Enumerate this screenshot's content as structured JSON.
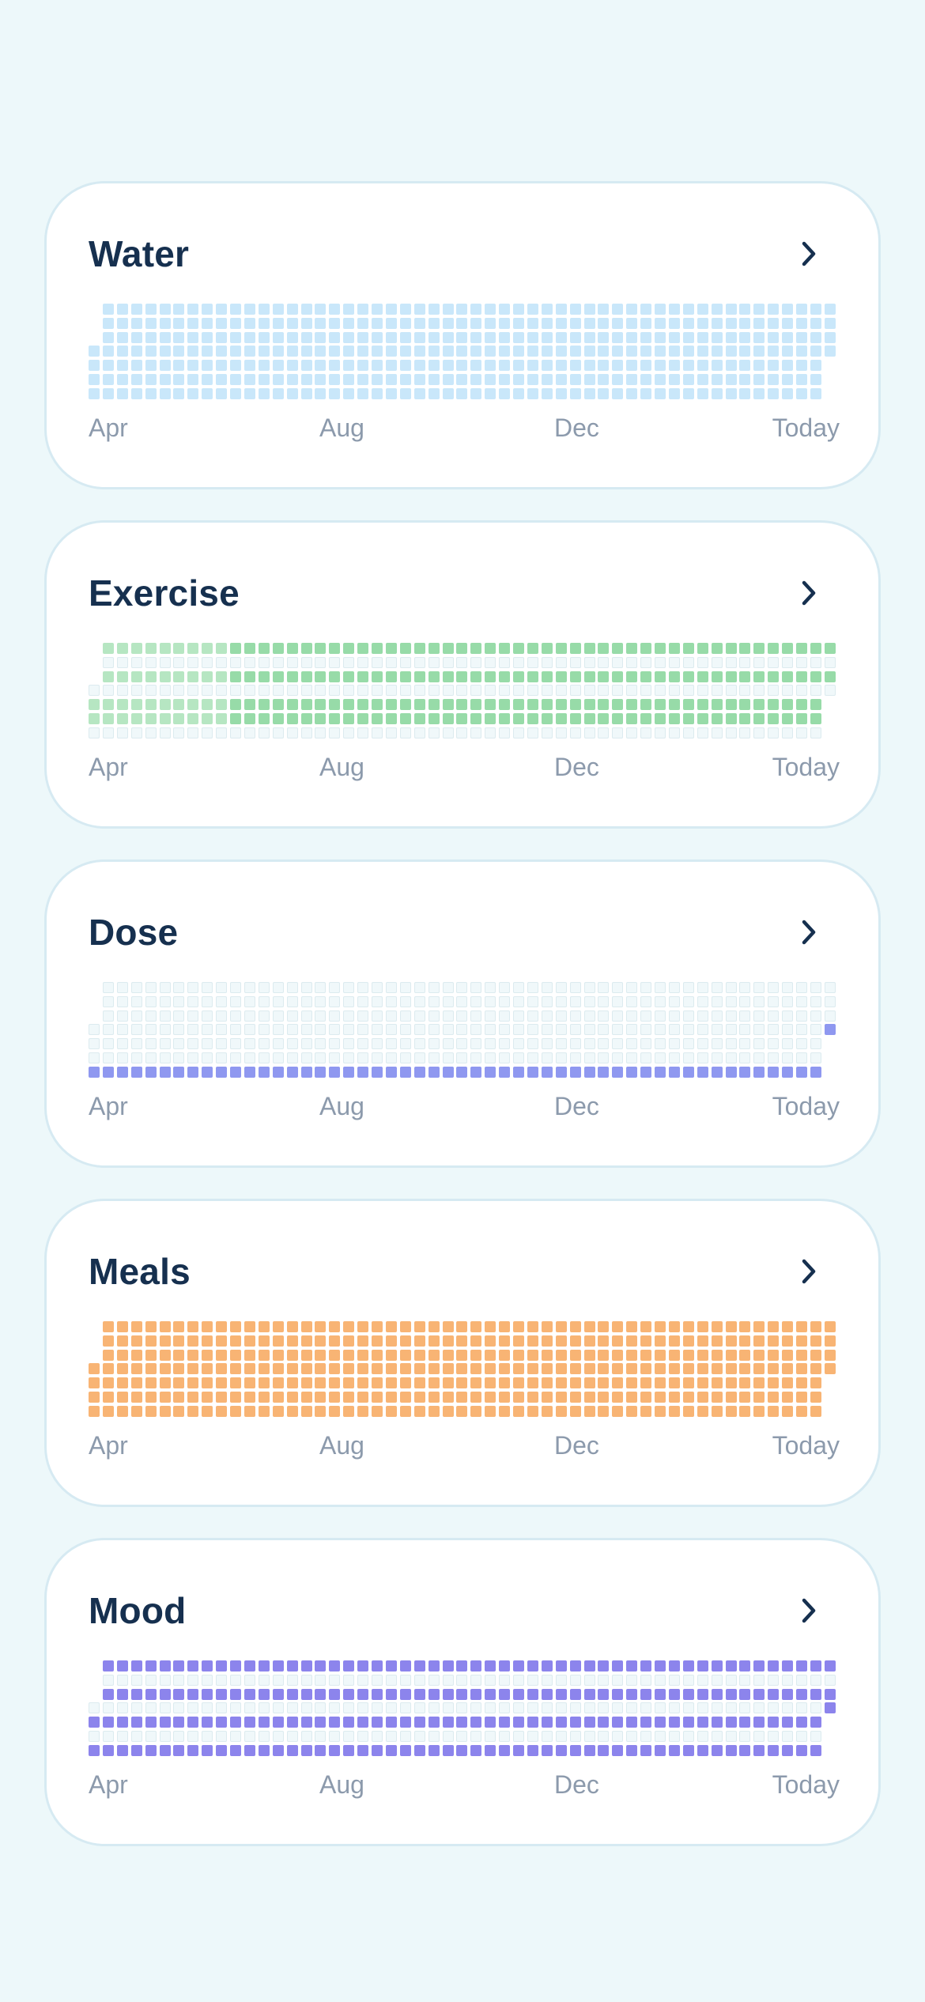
{
  "habits": [
    {
      "id": "water",
      "title": "Water",
      "colors": {
        "filled": "#C9E7FA",
        "filled_alt": "#C9E7FA",
        "empty": "#EEF6FA",
        "empty_border": "#DDEBF2"
      },
      "row_levels": [
        1,
        1,
        1,
        1,
        1,
        1,
        1
      ]
    },
    {
      "id": "exercise",
      "title": "Exercise",
      "colors": {
        "filled": "#97DBA8",
        "filled_alt": "#B6E6C2",
        "empty": "#F0F8FA",
        "empty_border": "#DCEBEF"
      },
      "row_levels": [
        1,
        0,
        1,
        0,
        1,
        1,
        0
      ]
    },
    {
      "id": "dose",
      "title": "Dose",
      "colors": {
        "filled": "#8F98F0",
        "filled_alt": "#8F98F0",
        "empty": "#F0F8FA",
        "empty_border": "#DCEBEF"
      },
      "row_levels": [
        0,
        0,
        0,
        0,
        0,
        0,
        1
      ],
      "extra_filled": [
        [
          87,
          3
        ]
      ]
    },
    {
      "id": "meals",
      "title": "Meals",
      "colors": {
        "filled": "#F8B474",
        "filled_alt": "#F8B474",
        "empty": "#F0F8FA",
        "empty_border": "#DCEBEF"
      },
      "row_levels": [
        1,
        1,
        1,
        1,
        1,
        1,
        1
      ]
    },
    {
      "id": "mood",
      "title": "Mood",
      "colors": {
        "filled": "#8C84EC",
        "filled_alt": "#8C84EC",
        "empty": "#F0F8FA",
        "empty_border": "#DCEBEF"
      },
      "row_levels": [
        1,
        0,
        1,
        0,
        1,
        0,
        1
      ],
      "extra_filled": [
        [
          87,
          3
        ]
      ]
    }
  ],
  "axis": [
    "Apr",
    "Aug",
    "Dec",
    "Today"
  ],
  "icons": {
    "chevron": "chevron-right-icon"
  },
  "grid": {
    "weeks": 53,
    "days": 7
  }
}
